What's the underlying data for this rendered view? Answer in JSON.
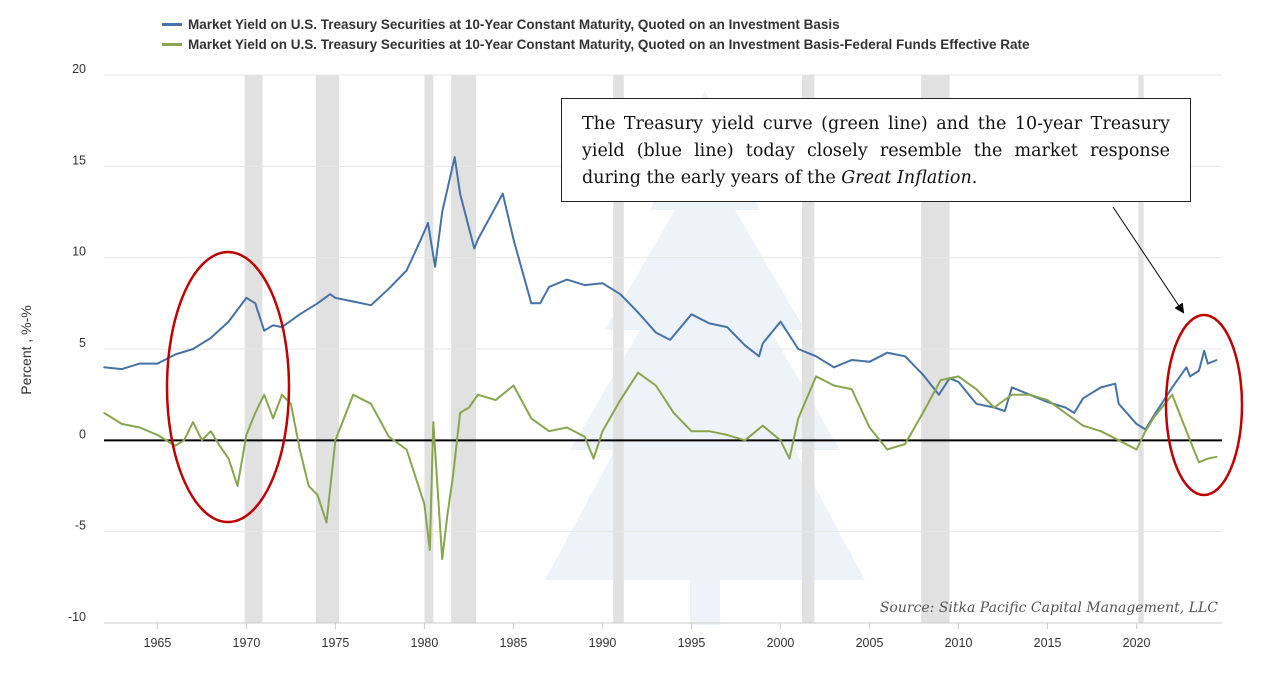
{
  "chart_data": {
    "type": "line",
    "legend": [
      {
        "name": "Market Yield on U.S. Treasury Securities at 10-Year Constant Maturity, Quoted on an Investment Basis",
        "color": "#4572a7"
      },
      {
        "name": "Market Yield on U.S. Treasury Securities at 10-Year Constant Maturity, Quoted on an Investment Basis-Federal Funds Effective Rate",
        "color": "#89a54e"
      }
    ],
    "ylabel": "Percent , %-%",
    "ylim": [
      -10,
      20
    ],
    "yticks": [
      -10,
      -5,
      0,
      5,
      10,
      15,
      20
    ],
    "xlim": [
      1962,
      2024.8
    ],
    "xticks": [
      1965,
      1970,
      1975,
      1980,
      1985,
      1990,
      1995,
      2000,
      2005,
      2010,
      2015,
      2020
    ],
    "recessions": [
      [
        1969.9,
        1970.9
      ],
      [
        1973.9,
        1975.2
      ],
      [
        1980.0,
        1980.5
      ],
      [
        1981.5,
        1982.9
      ],
      [
        1990.6,
        1991.2
      ],
      [
        2001.2,
        2001.9
      ],
      [
        2007.9,
        2009.5
      ],
      [
        2020.1,
        2020.4
      ]
    ],
    "series": [
      {
        "name": "10-Year Treasury Yield",
        "color": "#4572a7",
        "x": [
          1962,
          1963,
          1964,
          1965,
          1966,
          1967,
          1968,
          1969,
          1970,
          1970.5,
          1971,
          1971.5,
          1972,
          1973,
          1974,
          1974.7,
          1975,
          1976,
          1977,
          1978,
          1979,
          1979.8,
          1980.2,
          1980.6,
          1981,
          1981.7,
          1982,
          1982.8,
          1983,
          1984.4,
          1985,
          1986,
          1986.5,
          1987,
          1988,
          1989,
          1990,
          1991,
          1992,
          1993,
          1993.8,
          1995,
          1996,
          1997,
          1998,
          1998.8,
          1999,
          2000,
          2001,
          2002,
          2003,
          2004,
          2005,
          2006,
          2007,
          2008,
          2008.9,
          2009.5,
          2010,
          2011,
          2012,
          2012.6,
          2013,
          2014,
          2015,
          2016,
          2016.5,
          2017,
          2018,
          2018.8,
          2019,
          2020,
          2020.5,
          2021,
          2022,
          2022.8,
          2023,
          2023.5,
          2023.8,
          2024,
          2024.5
        ],
        "values": [
          4.0,
          3.9,
          4.2,
          4.2,
          4.7,
          5.0,
          5.6,
          6.5,
          7.8,
          7.5,
          6.0,
          6.3,
          6.2,
          6.9,
          7.5,
          8.0,
          7.8,
          7.6,
          7.4,
          8.3,
          9.3,
          11.0,
          11.9,
          9.5,
          12.5,
          15.5,
          13.5,
          10.5,
          11.0,
          13.5,
          11.0,
          7.5,
          7.5,
          8.4,
          8.8,
          8.5,
          8.6,
          8.0,
          7.0,
          5.9,
          5.5,
          6.9,
          6.4,
          6.2,
          5.2,
          4.6,
          5.3,
          6.5,
          5.0,
          4.6,
          4.0,
          4.4,
          4.3,
          4.8,
          4.6,
          3.6,
          2.5,
          3.4,
          3.2,
          2.0,
          1.8,
          1.6,
          2.9,
          2.5,
          2.1,
          1.8,
          1.5,
          2.3,
          2.9,
          3.1,
          2.0,
          0.9,
          0.6,
          1.4,
          2.9,
          4.0,
          3.5,
          3.8,
          4.9,
          4.2,
          4.4
        ]
      },
      {
        "name": "10-Year Treasury Yield minus Federal Funds Effective Rate",
        "color": "#89a54e",
        "x": [
          1962,
          1963,
          1964,
          1965,
          1966,
          1966.5,
          1967,
          1967.5,
          1968,
          1968.5,
          1969,
          1969.5,
          1970,
          1970.5,
          1971,
          1971.5,
          1972,
          1972.5,
          1973,
          1973.5,
          1974,
          1974.5,
          1975,
          1976,
          1977,
          1978,
          1979,
          1979.5,
          1980,
          1980.3,
          1980.5,
          1981,
          1981.3,
          1981.6,
          1982,
          1982.5,
          1983,
          1984,
          1985,
          1986,
          1987,
          1988,
          1989,
          1989.5,
          1990,
          1991,
          1992,
          1993,
          1994,
          1995,
          1996,
          1997,
          1998,
          1999,
          2000,
          2000.5,
          2001,
          2002,
          2003,
          2004,
          2005,
          2006,
          2007,
          2008,
          2009,
          2010,
          2011,
          2012,
          2013,
          2014,
          2015,
          2016,
          2017,
          2018,
          2019,
          2020,
          2020.5,
          2021,
          2022,
          2023,
          2023.5,
          2024,
          2024.5
        ],
        "values": [
          1.5,
          0.9,
          0.7,
          0.3,
          -0.3,
          0.0,
          1.0,
          0.0,
          0.5,
          -0.3,
          -1.0,
          -2.5,
          0.3,
          1.5,
          2.5,
          1.2,
          2.5,
          2.0,
          -0.5,
          -2.5,
          -3.0,
          -4.5,
          0.0,
          2.5,
          2.0,
          0.2,
          -0.5,
          -2.0,
          -3.5,
          -6.0,
          1.0,
          -6.5,
          -4.0,
          -2.0,
          1.5,
          1.8,
          2.5,
          2.2,
          3.0,
          1.2,
          0.5,
          0.7,
          0.2,
          -1.0,
          0.5,
          2.2,
          3.7,
          3.0,
          1.5,
          0.5,
          0.5,
          0.3,
          0.0,
          0.8,
          0.0,
          -1.0,
          1.2,
          3.5,
          3.0,
          2.8,
          0.7,
          -0.5,
          -0.2,
          1.5,
          3.3,
          3.5,
          2.8,
          1.8,
          2.5,
          2.5,
          2.2,
          1.5,
          0.8,
          0.5,
          0.0,
          -0.5,
          0.5,
          1.3,
          2.5,
          0.0,
          -1.2,
          -1.0,
          -0.9
        ]
      }
    ],
    "zero_line": 0
  },
  "annotation": {
    "part1": "The Treasury yield curve (green line) and the 10-year Treasury yield (blue line) today closely resemble the market response during the early years of the ",
    "emphasis": "Great Inflation",
    "part2": "."
  },
  "source": "Source: Sitka Pacific Capital Management, LLC",
  "colors": {
    "grid": "#e6e6e6",
    "recession": "#e1e1e1",
    "circle": "#c00000",
    "watermark": "#eef3f9"
  }
}
